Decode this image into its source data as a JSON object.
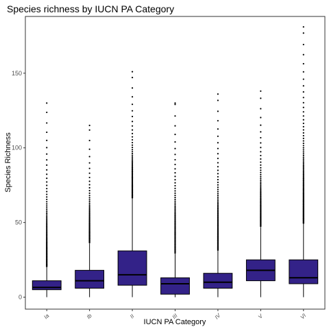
{
  "chart_data": {
    "type": "boxplot",
    "title": "Species richness by IUCN PA Category",
    "xlabel": "IUCN PA Category",
    "ylabel": "Species Richness",
    "ylim": [
      -8,
      188
    ],
    "yticks": [
      0,
      50,
      100,
      150
    ],
    "grid": false,
    "legend": "none",
    "box_color": "#332288",
    "categories": [
      "Ia",
      "Ib",
      "II",
      "III",
      "IV",
      "V",
      "VI"
    ],
    "boxes": [
      {
        "category": "Ia",
        "whisker_low": 0,
        "q1": 5,
        "median": 6.5,
        "q3": 11,
        "whisker_high": 20,
        "outlier_min": 20,
        "outlier_max": 130
      },
      {
        "category": "Ib",
        "whisker_low": 0,
        "q1": 6,
        "median": 11,
        "q3": 18,
        "whisker_high": 36,
        "outlier_min": 36,
        "outlier_max": 115
      },
      {
        "category": "II",
        "whisker_low": 0,
        "q1": 8,
        "median": 15,
        "q3": 31,
        "whisker_high": 66,
        "outlier_min": 66,
        "outlier_max": 151
      },
      {
        "category": "III",
        "whisker_low": 0,
        "q1": 2,
        "median": 9,
        "q3": 13,
        "whisker_high": 29,
        "outlier_min": 29,
        "outlier_max": 130
      },
      {
        "category": "IV",
        "whisker_low": 0,
        "q1": 6,
        "median": 10,
        "q3": 16,
        "whisker_high": 31,
        "outlier_min": 31,
        "outlier_max": 136
      },
      {
        "category": "V",
        "whisker_low": 0,
        "q1": 11,
        "median": 18,
        "q3": 25,
        "whisker_high": 47,
        "outlier_min": 47,
        "outlier_max": 138
      },
      {
        "category": "VI",
        "whisker_low": 0,
        "q1": 9,
        "median": 13,
        "q3": 25,
        "whisker_high": 49,
        "outlier_min": 49,
        "outlier_max": 181
      }
    ]
  }
}
